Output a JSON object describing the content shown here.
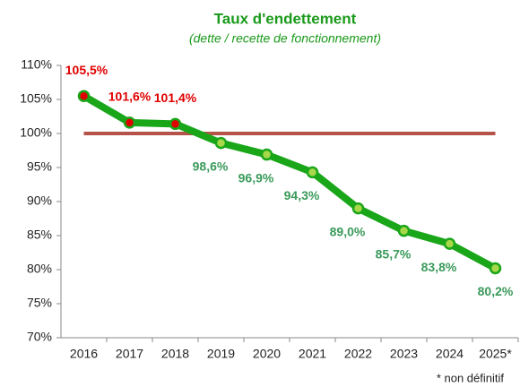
{
  "chart_data": {
    "type": "line",
    "title": "Taux d'endettement",
    "subtitle": "(dette / recette de fonctionnement)",
    "categories": [
      "2016",
      "2017",
      "2018",
      "2019",
      "2020",
      "2021",
      "2022",
      "2023",
      "2024",
      "2025*"
    ],
    "series": [
      {
        "name": "Taux d'endettement",
        "color": "#19a619",
        "values": [
          105.5,
          101.6,
          101.4,
          98.6,
          96.9,
          94.3,
          89.0,
          85.7,
          83.8,
          80.2
        ],
        "value_labels": [
          "105,5%",
          "101,6%",
          "101,4%",
          "98,6%",
          "96,9%",
          "94,3%",
          "89,0%",
          "85,7%",
          "83,8%",
          "80,2%"
        ]
      }
    ],
    "reference_line": {
      "value": 100,
      "color": "#b5524a"
    },
    "highlight_color": "#e00000",
    "ylim": [
      70,
      110
    ],
    "yticks": [
      {
        "value": 70,
        "label": "70%"
      },
      {
        "value": 75,
        "label": "75%"
      },
      {
        "value": 80,
        "label": "80%"
      },
      {
        "value": 85,
        "label": "85%"
      },
      {
        "value": 90,
        "label": "90%"
      },
      {
        "value": 95,
        "label": "95%"
      },
      {
        "value": 100,
        "label": "100%"
      },
      {
        "value": 105,
        "label": "105%"
      },
      {
        "value": 110,
        "label": "110%"
      }
    ],
    "grid": false,
    "footnote": "* non définitif"
  }
}
